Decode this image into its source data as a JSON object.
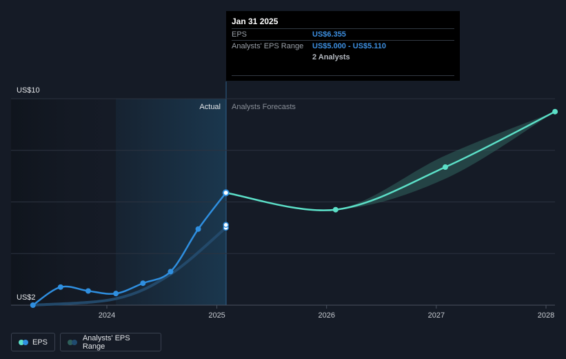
{
  "tooltip": {
    "date": "Jan 31 2025",
    "eps_label": "EPS",
    "eps_value": "US$6.355",
    "range_label": "Analysts' EPS Range",
    "range_value": "US$5.000 - US$5.110",
    "analysts": "2 Analysts"
  },
  "labels": {
    "actual": "Actual",
    "forecast": "Analysts Forecasts"
  },
  "legend": {
    "eps": "EPS",
    "range": "Analysts' EPS Range"
  },
  "colors": {
    "background": "#151b26",
    "eps_actual": "#2f8fe0",
    "eps_forecast": "#5ce0c8",
    "range_fill": "#2e5f5a",
    "actual_shade": "#1b3a52"
  },
  "chart_data": {
    "type": "line",
    "x_ticks": [
      "2024",
      "2025",
      "2026",
      "2027",
      "2028"
    ],
    "y_ticks": [
      "US$2",
      "US$10"
    ],
    "ylim": [
      2,
      10
    ],
    "grid": true,
    "series": [
      {
        "name": "EPS",
        "segment": "actual",
        "points": [
          {
            "x": "2023-04-30",
            "y": 2.0
          },
          {
            "x": "2023-07-31",
            "y": 2.7
          },
          {
            "x": "2023-10-31",
            "y": 2.55
          },
          {
            "x": "2024-01-31",
            "y": 2.45
          },
          {
            "x": "2024-04-30",
            "y": 2.85
          },
          {
            "x": "2024-07-31",
            "y": 3.3
          },
          {
            "x": "2024-10-31",
            "y": 4.95
          },
          {
            "x": "2025-01-31",
            "y": 6.355
          }
        ]
      },
      {
        "name": "EPS",
        "segment": "forecast",
        "points": [
          {
            "x": "2025-01-31",
            "y": 6.355
          },
          {
            "x": "2026-01-31",
            "y": 5.7
          },
          {
            "x": "2027-01-31",
            "y": 7.35
          },
          {
            "x": "2028-01-31",
            "y": 9.5
          }
        ]
      },
      {
        "name": "Analysts' EPS Range",
        "type": "area",
        "past": [
          {
            "x": "2023-04-30",
            "y": 2.0
          },
          {
            "x": "2024-01-31",
            "y": 2.25
          },
          {
            "x": "2024-07-31",
            "y": 3.2
          },
          {
            "x": "2025-01-31",
            "y": 5.0
          }
        ],
        "past_markers": [
          {
            "x": "2025-01-31",
            "y": 5.0
          },
          {
            "x": "2025-01-31",
            "y": 5.11
          }
        ],
        "forecast_low": [
          {
            "x": "2025-01-31",
            "y": 6.355
          },
          {
            "x": "2026-01-31",
            "y": 5.7
          },
          {
            "x": "2027-01-31",
            "y": 6.9
          },
          {
            "x": "2028-01-31",
            "y": 9.5
          }
        ],
        "forecast_high": [
          {
            "x": "2025-01-31",
            "y": 6.355
          },
          {
            "x": "2026-01-31",
            "y": 5.7
          },
          {
            "x": "2027-01-31",
            "y": 7.8
          },
          {
            "x": "2028-01-31",
            "y": 9.5
          }
        ]
      }
    ]
  }
}
